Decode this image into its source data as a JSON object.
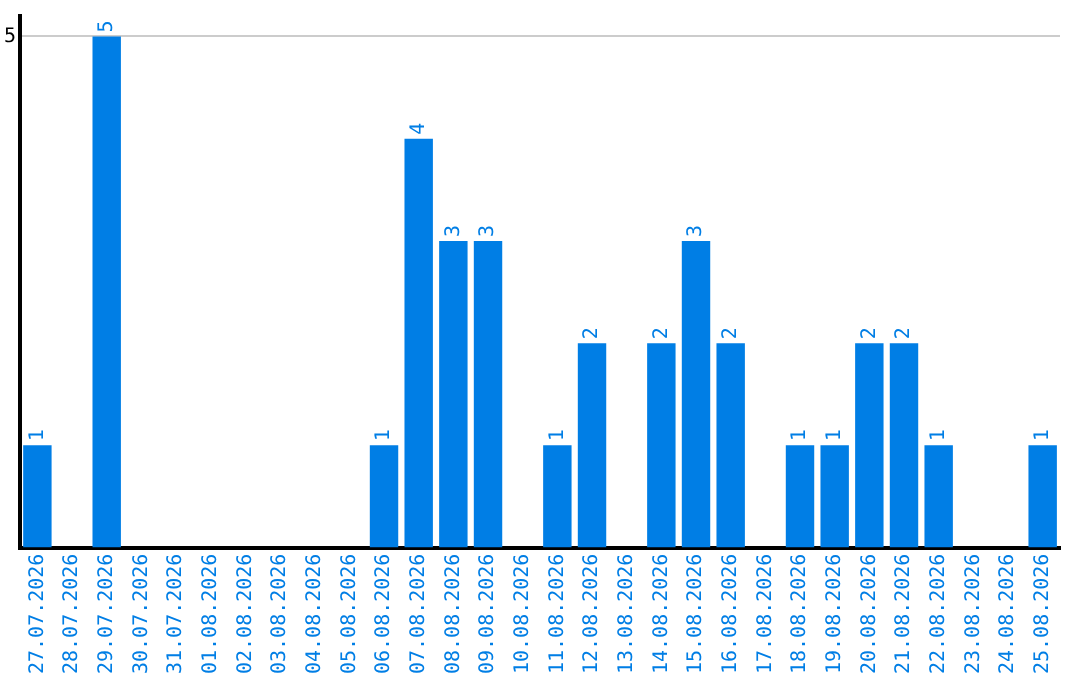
{
  "chart_data": {
    "type": "bar",
    "categories": [
      "27.07.2026",
      "28.07.2026",
      "29.07.2026",
      "30.07.2026",
      "31.07.2026",
      "01.08.2026",
      "02.08.2026",
      "03.08.2026",
      "04.08.2026",
      "05.08.2026",
      "06.08.2026",
      "07.08.2026",
      "08.08.2026",
      "09.08.2026",
      "10.08.2026",
      "11.08.2026",
      "12.08.2026",
      "13.08.2026",
      "14.08.2026",
      "15.08.2026",
      "16.08.2026",
      "17.08.2026",
      "18.08.2026",
      "19.08.2026",
      "20.08.2026",
      "21.08.2026",
      "22.08.2026",
      "23.08.2026",
      "24.08.2026",
      "25.08.2026"
    ],
    "values": [
      1,
      0,
      5,
      0,
      0,
      0,
      0,
      0,
      0,
      0,
      1,
      4,
      3,
      3,
      0,
      1,
      2,
      0,
      2,
      3,
      2,
      0,
      1,
      1,
      2,
      2,
      1,
      0,
      0,
      1
    ],
    "value_labels": [
      "1",
      null,
      "5",
      null,
      null,
      null,
      null,
      null,
      null,
      null,
      "1",
      "4",
      "3",
      "3",
      null,
      "1",
      "2",
      null,
      "2",
      "3",
      "2",
      null,
      "1",
      "1",
      "2",
      "2",
      "1",
      null,
      null,
      "1"
    ],
    "color": "#007ee5",
    "ylim": [
      0,
      5.2
    ],
    "yticks": [
      5
    ],
    "grid": "y",
    "legend": false
  }
}
